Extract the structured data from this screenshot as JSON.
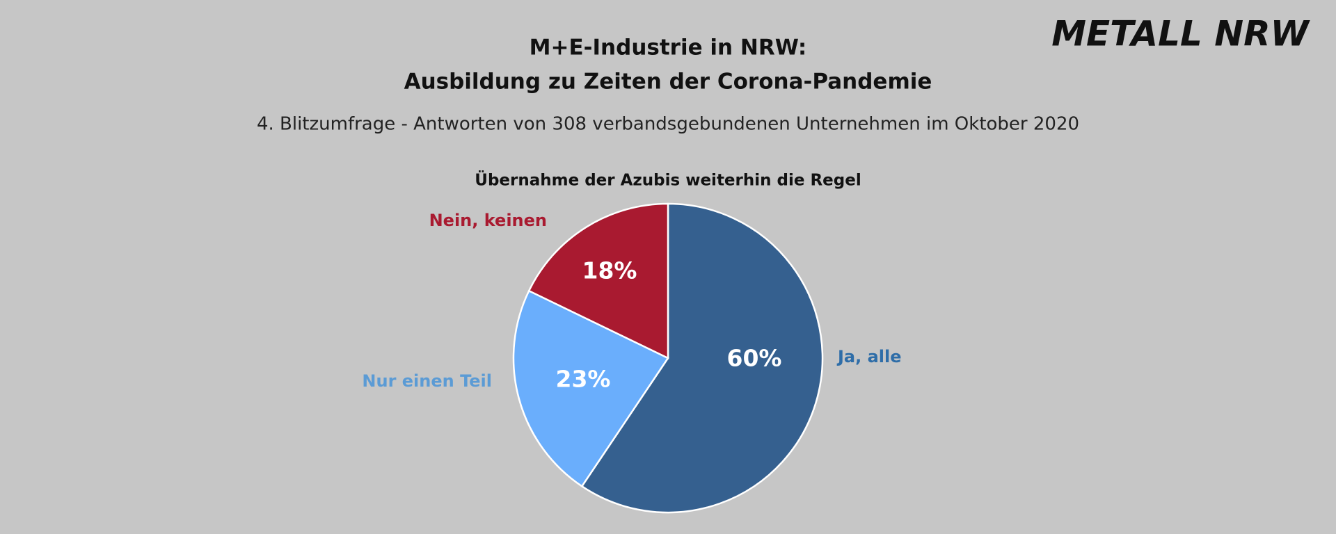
{
  "logo": "METALL NRW",
  "chart_data": {
    "type": "pie",
    "title": [
      "M+E-Industrie in NRW:",
      "Ausbildung zu Zeiten der Corona-Pandemie"
    ],
    "subtitle": "4. Blitzumfrage - Antworten von 308 verbandsgebundenen Unternehmen im Oktober 2020",
    "chart_title": "Übernahme der Azubis weiterhin die Regel",
    "categories": [
      "Ja, alle",
      "Nur einen Teil",
      "Nein, keinen"
    ],
    "values": [
      60,
      23,
      18
    ],
    "value_labels": [
      "60%",
      "23%",
      "18%"
    ],
    "colors": [
      "#35608f",
      "#6aaefc",
      "#a91a30"
    ],
    "label_colors": [
      "#2e6da8",
      "#5b9bd5",
      "#a91a30"
    ]
  }
}
